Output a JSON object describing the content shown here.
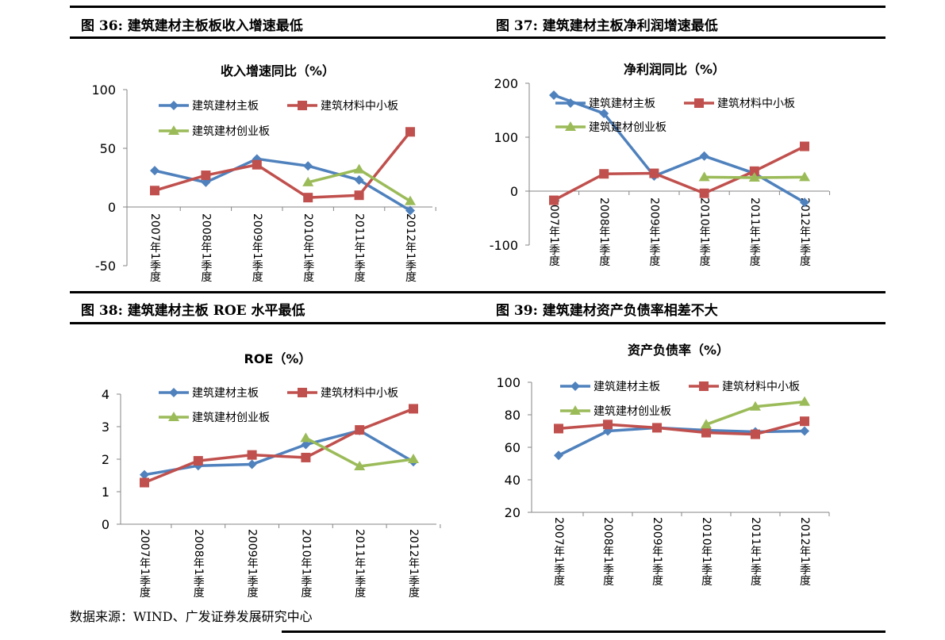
{
  "figures": [
    {
      "heading": "图 36:  建筑建材主板板收入增速最低"
    },
    {
      "heading": "图 37:  建筑建材主板净利润增速最低"
    },
    {
      "heading": "图 38:  建筑建材主板 ROE 水平最低"
    },
    {
      "heading": "图 39:  建筑建材资产负债率相差不大"
    }
  ],
  "footer": "数据来源：WIND、广发证券发展研究中心",
  "colors": {
    "main": "#4F81BD",
    "sme": "#C0504D",
    "gem": "#9BBB59"
  },
  "chart_data": [
    {
      "type": "line",
      "title": "收入增速同比（%）",
      "categories": [
        "2007年1季度",
        "2008年1季度",
        "2009年1季度",
        "2010年1季度",
        "2011年1季度",
        "2012年1季度"
      ],
      "ylim": [
        -50,
        100
      ],
      "yticks": [
        -50,
        0,
        50,
        100
      ],
      "grid": false,
      "legend": "top",
      "series": [
        {
          "name": "建筑建材主板",
          "marker": "diamond",
          "values": [
            31,
            21,
            41,
            35,
            23,
            -3
          ]
        },
        {
          "name": "建筑材料中小板",
          "marker": "square",
          "values": [
            14,
            27,
            36,
            8,
            10,
            64
          ]
        },
        {
          "name": "建筑建材创业板",
          "marker": "triangle",
          "values": [
            null,
            null,
            null,
            21,
            32,
            5
          ]
        }
      ]
    },
    {
      "type": "line",
      "title": "净利润同比（%）",
      "categories": [
        "2007年1季度",
        "2008年1季度",
        "2009年1季度",
        "2010年1季度",
        "2011年1季度",
        "2012年1季度"
      ],
      "ylim": [
        -100,
        200
      ],
      "yticks": [
        -100,
        0,
        100,
        200
      ],
      "grid": false,
      "legend": "top",
      "series": [
        {
          "name": "建筑建材主板",
          "marker": "diamond",
          "values": [
            178,
            144,
            28,
            65,
            33,
            -21
          ]
        },
        {
          "name": "建筑材料中小板",
          "marker": "square",
          "values": [
            -17,
            32,
            33,
            -4,
            37,
            83
          ]
        },
        {
          "name": "建筑建材创业板",
          "marker": "triangle",
          "values": [
            null,
            null,
            null,
            26,
            25,
            26
          ]
        }
      ]
    },
    {
      "type": "line",
      "title": "ROE（%）",
      "categories": [
        "2007年1季度",
        "2008年1季度",
        "2009年1季度",
        "2010年1季度",
        "2011年1季度",
        "2012年1季度"
      ],
      "ylim": [
        0,
        4
      ],
      "yticks": [
        0,
        1,
        2,
        3,
        4
      ],
      "grid": false,
      "legend": "top",
      "series": [
        {
          "name": "建筑建材主板",
          "marker": "diamond",
          "values": [
            1.52,
            1.8,
            1.84,
            2.45,
            2.88,
            1.92
          ]
        },
        {
          "name": "建筑材料中小板",
          "marker": "square",
          "values": [
            1.28,
            1.95,
            2.13,
            2.05,
            2.9,
            3.55
          ]
        },
        {
          "name": "建筑建材创业板",
          "marker": "triangle",
          "values": [
            null,
            null,
            null,
            2.65,
            1.78,
            2.0
          ]
        }
      ]
    },
    {
      "type": "line",
      "title": "资产负债率（%）",
      "categories": [
        "2007年1季度",
        "2008年1季度",
        "2009年1季度",
        "2010年1季度",
        "2011年1季度",
        "2012年1季度"
      ],
      "ylim": [
        20,
        100
      ],
      "yticks": [
        20,
        40,
        60,
        80,
        100
      ],
      "grid": false,
      "legend": "top",
      "series": [
        {
          "name": "建筑建材主板",
          "marker": "diamond",
          "values": [
            55,
            70,
            72,
            70.5,
            69.5,
            70
          ]
        },
        {
          "name": "建筑材料中小板",
          "marker": "square",
          "values": [
            71.5,
            74,
            72,
            69,
            68,
            76
          ]
        },
        {
          "name": "建筑建材创业板",
          "marker": "triangle",
          "values": [
            null,
            null,
            null,
            74,
            85,
            88
          ]
        }
      ]
    }
  ]
}
